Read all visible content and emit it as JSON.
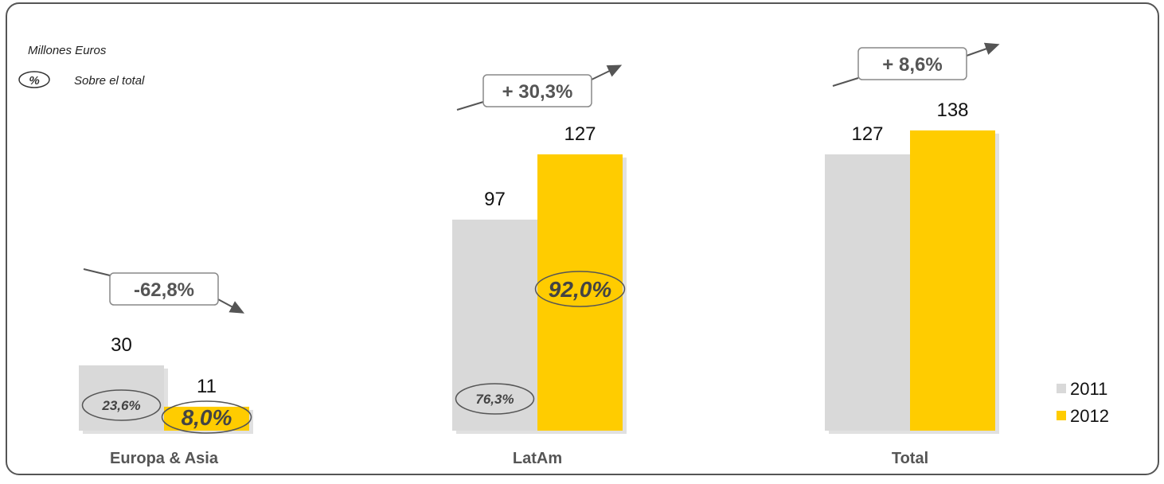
{
  "chart_data": {
    "type": "bar",
    "units_note": "Millones Euros",
    "pct_note": "Sobre el total",
    "pct_symbol": "%",
    "categories": [
      "Europa & Asia",
      "LatAm",
      "Total"
    ],
    "series": [
      {
        "name": "2011",
        "values": [
          30,
          97,
          127
        ],
        "color": "#d9d9d9"
      },
      {
        "name": "2012",
        "values": [
          11,
          127,
          138
        ],
        "color": "#ffcc00"
      }
    ],
    "value_labels": [
      [
        "30",
        "97",
        "127"
      ],
      [
        "11",
        "127",
        "138"
      ]
    ],
    "share_labels": [
      [
        "23,6%",
        "76,3%",
        ""
      ],
      [
        "8,0%",
        "92,0%",
        ""
      ]
    ],
    "changes": [
      "-62,8%",
      "+ 30,3%",
      "+ 8,6%"
    ],
    "change_direction": [
      "down",
      "up",
      "up"
    ],
    "ylim": [
      0,
      150
    ],
    "legend_position": "bottom-right",
    "grid": false
  }
}
